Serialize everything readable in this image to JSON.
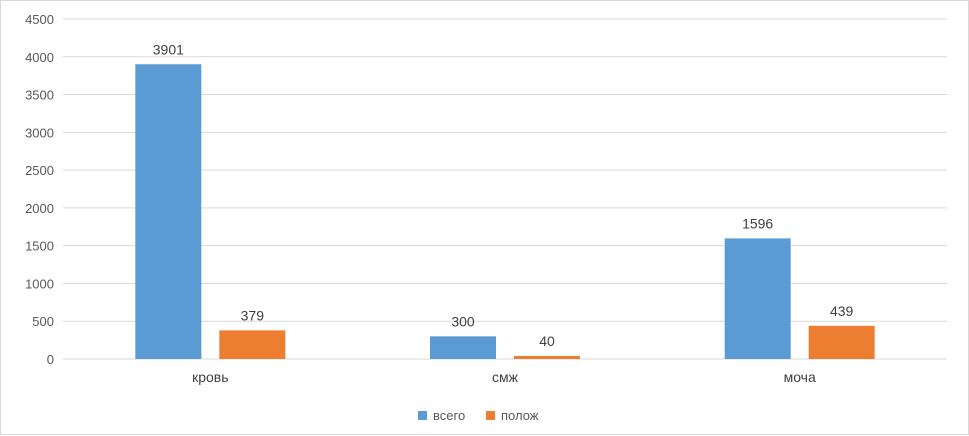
{
  "chart_data": {
    "type": "bar",
    "categories": [
      "кровь",
      "смж",
      "моча"
    ],
    "series": [
      {
        "name": "всего",
        "values": [
          3901,
          300,
          1596
        ],
        "color": "#5b9bd5"
      },
      {
        "name": "полож",
        "values": [
          379,
          40,
          439
        ],
        "color": "#ed7d31"
      }
    ],
    "y_ticks": [
      "0",
      "500",
      "1000",
      "1500",
      "2000",
      "2500",
      "3000",
      "3500",
      "4000",
      "4500"
    ],
    "ylim": [
      0,
      4500
    ],
    "title": "",
    "xlabel": "",
    "ylabel": "",
    "grid": true,
    "legend_position": "bottom",
    "data_labels": true
  }
}
